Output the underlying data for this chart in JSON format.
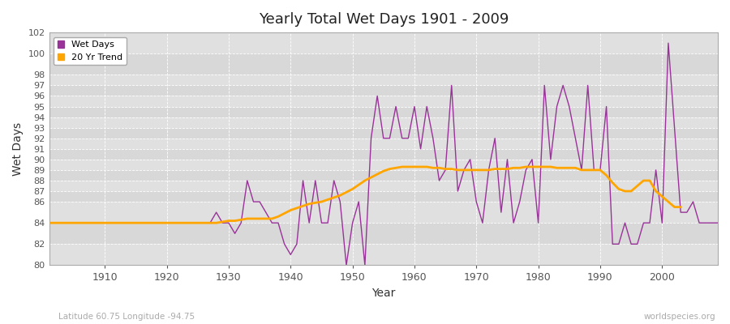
{
  "title": "Yearly Total Wet Days 1901 - 2009",
  "ylabel": "Wet Days",
  "xlabel": "Year",
  "subtitle_left": "Latitude 60.75 Longitude -94.75",
  "subtitle_right": "worldspecies.org",
  "wet_days_color": "#993399",
  "trend_color": "#FFA500",
  "plot_bg_color": "#E8E8E8",
  "fig_bg_color": "#FFFFFF",
  "ylim": [
    80,
    102
  ],
  "yticks": [
    80,
    82,
    84,
    86,
    87,
    88,
    89,
    90,
    91,
    92,
    93,
    94,
    95,
    96,
    97,
    98,
    100,
    102
  ],
  "xticks": [
    1910,
    1920,
    1930,
    1940,
    1950,
    1960,
    1970,
    1980,
    1990,
    2000
  ],
  "xlim": [
    1901,
    2009
  ],
  "years": [
    1901,
    1902,
    1903,
    1904,
    1905,
    1906,
    1907,
    1908,
    1909,
    1910,
    1911,
    1912,
    1913,
    1914,
    1915,
    1916,
    1917,
    1918,
    1919,
    1920,
    1921,
    1922,
    1923,
    1924,
    1925,
    1926,
    1927,
    1928,
    1929,
    1930,
    1931,
    1932,
    1933,
    1934,
    1935,
    1936,
    1937,
    1938,
    1939,
    1940,
    1941,
    1942,
    1943,
    1944,
    1945,
    1946,
    1947,
    1948,
    1949,
    1950,
    1951,
    1952,
    1953,
    1954,
    1955,
    1956,
    1957,
    1958,
    1959,
    1960,
    1961,
    1962,
    1963,
    1964,
    1965,
    1966,
    1967,
    1968,
    1969,
    1970,
    1971,
    1972,
    1973,
    1974,
    1975,
    1976,
    1977,
    1978,
    1979,
    1980,
    1981,
    1982,
    1983,
    1984,
    1985,
    1986,
    1987,
    1988,
    1989,
    1990,
    1991,
    1992,
    1993,
    1994,
    1995,
    1996,
    1997,
    1998,
    1999,
    2000,
    2001,
    2002,
    2003,
    2004,
    2005,
    2006,
    2007,
    2008,
    2009
  ],
  "wet_days": [
    84,
    84,
    84,
    84,
    84,
    84,
    84,
    84,
    84,
    84,
    84,
    84,
    84,
    84,
    84,
    84,
    84,
    84,
    84,
    84,
    84,
    84,
    84,
    84,
    84,
    84,
    84,
    85,
    84,
    84,
    83,
    84,
    88,
    86,
    86,
    85,
    84,
    84,
    82,
    81,
    82,
    88,
    84,
    88,
    84,
    84,
    88,
    86,
    80,
    84,
    86,
    80,
    92,
    96,
    92,
    92,
    95,
    92,
    92,
    95,
    91,
    95,
    92,
    88,
    89,
    97,
    87,
    89,
    90,
    86,
    84,
    89,
    92,
    85,
    90,
    84,
    86,
    89,
    90,
    84,
    97,
    90,
    95,
    97,
    95,
    92,
    89,
    97,
    89,
    89,
    95,
    82,
    82,
    84,
    82,
    82,
    84,
    84,
    89,
    84,
    101,
    93,
    85,
    85,
    86,
    84,
    84,
    84,
    84
  ],
  "trend": [
    84.0,
    84.0,
    84.0,
    84.0,
    84.0,
    84.0,
    84.0,
    84.0,
    84.0,
    84.0,
    84.0,
    84.0,
    84.0,
    84.0,
    84.0,
    84.0,
    84.0,
    84.0,
    84.0,
    84.0,
    84.0,
    84.0,
    84.0,
    84.0,
    84.0,
    84.0,
    84.0,
    84.0,
    84.1,
    84.2,
    84.2,
    84.3,
    84.4,
    84.4,
    84.4,
    84.4,
    84.4,
    84.6,
    84.9,
    85.2,
    85.4,
    85.6,
    85.8,
    85.9,
    86.0,
    86.2,
    86.4,
    86.6,
    86.9,
    87.2,
    87.6,
    88.0,
    88.3,
    88.6,
    88.9,
    89.1,
    89.2,
    89.3,
    89.3,
    89.3,
    89.3,
    89.3,
    89.2,
    89.2,
    89.1,
    89.1,
    89.0,
    89.0,
    89.0,
    89.0,
    89.0,
    89.0,
    89.1,
    89.1,
    89.1,
    89.2,
    89.2,
    89.3,
    89.3,
    89.3,
    89.3,
    89.3,
    89.2,
    89.2,
    89.2,
    89.2,
    89.0,
    89.0,
    89.0,
    89.0,
    88.5,
    87.8,
    87.2,
    87.0,
    87.0,
    87.5,
    88.0,
    88.0,
    87.0,
    86.5,
    86.0,
    85.5,
    85.5,
    null,
    null,
    null,
    null,
    null,
    null
  ],
  "band_colors": [
    "#E0E0E0",
    "#D8D8D8"
  ]
}
